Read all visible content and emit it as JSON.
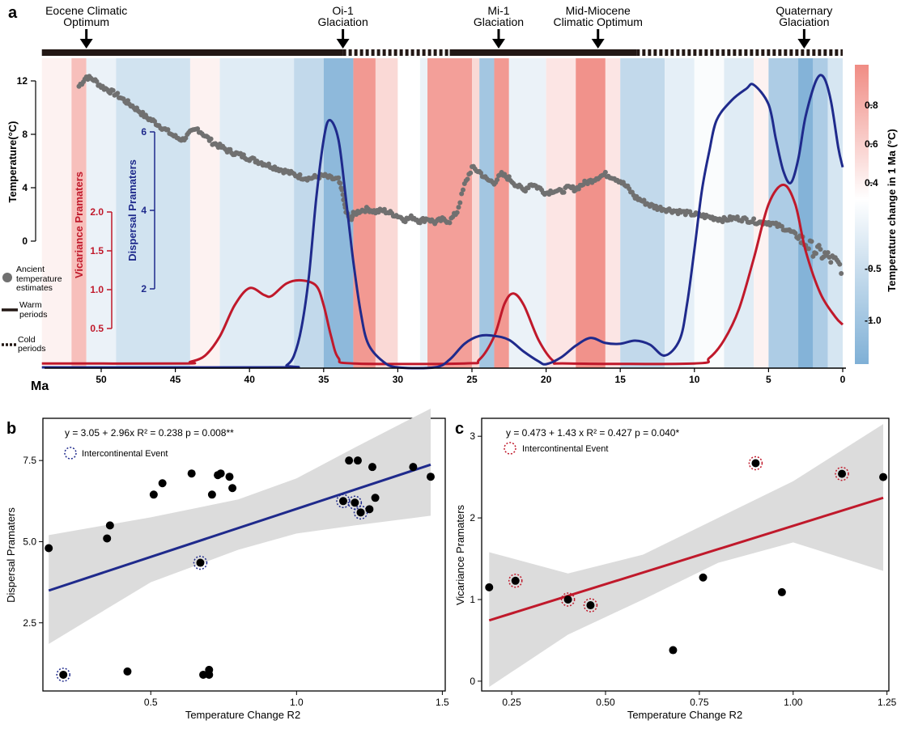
{
  "colors": {
    "vicariance": "#c0192b",
    "dispersal": "#1f2a8c",
    "temperature_points": "#707070",
    "warm_band": "#f08c84",
    "cold_band": "#7fb0d6",
    "ci_band": "#dcdcdc",
    "regression_b": "#1f2a8c",
    "regression_c": "#c0192b",
    "period_bar": "#231815"
  },
  "panel_a": {
    "label": "a",
    "events": [
      {
        "name_line1": "Eocene Climatic",
        "name_line2": "Optimum",
        "ma": 51
      },
      {
        "name_line1": "Oi-1",
        "name_line2": "Glaciation",
        "ma": 33.7
      },
      {
        "name_line1": "Mi-1",
        "name_line2": "Glaciation",
        "ma": 23.2
      },
      {
        "name_line1": "Mid-Miocene",
        "name_line2": "Climatic Optimum",
        "ma": 16.5
      },
      {
        "name_line1": "Quaternary",
        "name_line2": "Glaciation",
        "ma": 2.6
      }
    ],
    "periods": [
      {
        "type": "warm",
        "from": 54,
        "to": 33.7
      },
      {
        "type": "cold",
        "from": 33.7,
        "to": 26.5
      },
      {
        "type": "warm",
        "from": 26.5,
        "to": 13.9
      },
      {
        "type": "cold",
        "from": 13.9,
        "to": 0
      }
    ],
    "x_axis": {
      "label": "Ma",
      "ticks": [
        50,
        45,
        40,
        35,
        30,
        25,
        20,
        15,
        10,
        5,
        0
      ],
      "range": [
        54,
        0
      ]
    },
    "temperature_axis": {
      "label": "Temperature(°C)",
      "ticks": [
        0,
        4,
        8,
        12
      ],
      "range": [
        0,
        12
      ]
    },
    "vicariance_axis": {
      "label": "Vicariance Pramaters",
      "ticks": [
        0.5,
        1.0,
        1.5,
        2.0
      ]
    },
    "dispersal_axis": {
      "label": "Dispersal Pramaters",
      "ticks": [
        2,
        4,
        6
      ]
    },
    "colorbar": {
      "label": "Temperature change in 1 Ma (°C)",
      "ticks": [
        0.8,
        0.6,
        0.4,
        -0.5,
        -1.0
      ]
    },
    "legend": {
      "points_line1": "Ancient",
      "points_line2": "temperature",
      "points_line3": "estimates",
      "warm_line1": "Warm",
      "warm_line2": "periods",
      "cold_line1": "Cold",
      "cold_line2": "periods"
    },
    "temperature_series": [
      [
        51.5,
        11.6
      ],
      [
        51,
        12.3
      ],
      [
        50.5,
        12.1
      ],
      [
        50,
        11.6
      ],
      [
        49.5,
        11.3
      ],
      [
        49,
        11.0
      ],
      [
        48.5,
        10.6
      ],
      [
        48,
        10.2
      ],
      [
        47.5,
        9.8
      ],
      [
        47,
        9.3
      ],
      [
        46.5,
        9.0
      ],
      [
        46,
        8.6
      ],
      [
        45.5,
        8.2
      ],
      [
        45,
        7.8
      ],
      [
        44.5,
        7.6
      ],
      [
        44,
        8.1
      ],
      [
        43.5,
        8.4
      ],
      [
        43,
        7.9
      ],
      [
        42.5,
        7.4
      ],
      [
        42,
        7.1
      ],
      [
        41.5,
        6.8
      ],
      [
        41,
        6.6
      ],
      [
        40.5,
        6.4
      ],
      [
        40,
        6.2
      ],
      [
        39.5,
        6.0
      ],
      [
        39,
        5.8
      ],
      [
        38.5,
        5.6
      ],
      [
        38,
        5.4
      ],
      [
        37.5,
        5.2
      ],
      [
        37,
        5.0
      ],
      [
        36.5,
        4.8
      ],
      [
        36,
        4.7
      ],
      [
        35.5,
        4.8
      ],
      [
        35,
        4.9
      ],
      [
        34.5,
        4.7
      ],
      [
        34,
        4.6
      ],
      [
        33.7,
        3.5
      ],
      [
        33.5,
        2.2
      ],
      [
        33.2,
        1.6
      ],
      [
        33,
        2.0
      ],
      [
        32.5,
        2.3
      ],
      [
        32,
        2.4
      ],
      [
        31.5,
        2.2
      ],
      [
        31,
        2.3
      ],
      [
        30.5,
        2.1
      ],
      [
        30,
        1.9
      ],
      [
        29.5,
        1.6
      ],
      [
        29,
        1.8
      ],
      [
        28.5,
        1.5
      ],
      [
        28,
        1.7
      ],
      [
        27.5,
        1.4
      ],
      [
        27,
        1.6
      ],
      [
        26.5,
        1.5
      ],
      [
        26,
        2.2
      ],
      [
        25.5,
        4.2
      ],
      [
        25,
        5.5
      ],
      [
        24.5,
        5.2
      ],
      [
        24,
        4.6
      ],
      [
        23.5,
        4.4
      ],
      [
        23,
        5.0
      ],
      [
        22.5,
        4.7
      ],
      [
        22,
        4.2
      ],
      [
        21.5,
        3.8
      ],
      [
        21,
        4.3
      ],
      [
        20.5,
        4.0
      ],
      [
        20,
        3.6
      ],
      [
        19.5,
        3.8
      ],
      [
        19,
        3.7
      ],
      [
        18.5,
        4.0
      ],
      [
        18,
        3.9
      ],
      [
        17.5,
        4.3
      ],
      [
        17,
        4.5
      ],
      [
        16.5,
        4.8
      ],
      [
        16,
        5.0
      ],
      [
        15.5,
        4.8
      ],
      [
        15,
        4.5
      ],
      [
        14.5,
        4.0
      ],
      [
        14,
        3.3
      ],
      [
        13.5,
        3.0
      ],
      [
        13,
        2.7
      ],
      [
        12.5,
        2.5
      ],
      [
        12,
        2.4
      ],
      [
        11.5,
        2.3
      ],
      [
        11,
        2.2
      ],
      [
        10.5,
        2.1
      ],
      [
        10,
        2.0
      ],
      [
        9.5,
        1.9
      ],
      [
        9,
        1.8
      ],
      [
        8.5,
        1.7
      ],
      [
        8,
        1.6
      ],
      [
        7.5,
        1.7
      ],
      [
        7,
        1.7
      ],
      [
        6.5,
        1.6
      ],
      [
        6,
        1.5
      ],
      [
        5.5,
        1.4
      ],
      [
        5,
        1.4
      ],
      [
        4.5,
        1.2
      ],
      [
        4,
        1.0
      ],
      [
        3.5,
        0.7
      ],
      [
        3,
        0.3
      ],
      [
        2.5,
        -0.2
      ],
      [
        2,
        -0.6
      ],
      [
        1.5,
        -0.9
      ],
      [
        1,
        -1.2
      ],
      [
        0.5,
        -1.6
      ],
      [
        0,
        -2.0
      ]
    ],
    "vicariance_series": [
      [
        54,
        0.05
      ],
      [
        44.5,
        0.05
      ],
      [
        44,
        0.07
      ],
      [
        43,
        0.15
      ],
      [
        42,
        0.4
      ],
      [
        41,
        0.8
      ],
      [
        40,
        1.02
      ],
      [
        39,
        0.93
      ],
      [
        38.5,
        0.92
      ],
      [
        37.5,
        1.08
      ],
      [
        36.5,
        1.12
      ],
      [
        35.5,
        1.05
      ],
      [
        35,
        0.8
      ],
      [
        34.5,
        0.4
      ],
      [
        34,
        0.12
      ],
      [
        33,
        0.05
      ],
      [
        25.5,
        0.05
      ],
      [
        24.5,
        0.1
      ],
      [
        23.5,
        0.4
      ],
      [
        22.8,
        0.82
      ],
      [
        22.2,
        0.95
      ],
      [
        21.5,
        0.8
      ],
      [
        20.5,
        0.35
      ],
      [
        19.5,
        0.08
      ],
      [
        18.5,
        0.05
      ],
      [
        10,
        0.05
      ],
      [
        9,
        0.12
      ],
      [
        8,
        0.35
      ],
      [
        7,
        0.75
      ],
      [
        6,
        1.4
      ],
      [
        5,
        2.1
      ],
      [
        4,
        2.35
      ],
      [
        3.2,
        2.1
      ],
      [
        2.5,
        1.5
      ],
      [
        1.5,
        0.95
      ],
      [
        0.5,
        0.65
      ],
      [
        0,
        0.55
      ]
    ],
    "dispersal_series": [
      [
        54,
        0.0
      ],
      [
        38,
        0.0
      ],
      [
        37.5,
        0.05
      ],
      [
        37,
        0.3
      ],
      [
        36.5,
        1.0
      ],
      [
        36,
        2.3
      ],
      [
        35.5,
        4.3
      ],
      [
        35,
        5.8
      ],
      [
        34.6,
        6.3
      ],
      [
        34,
        5.8
      ],
      [
        33.5,
        4.3
      ],
      [
        33,
        2.7
      ],
      [
        32.5,
        1.4
      ],
      [
        32,
        0.6
      ],
      [
        31,
        0.15
      ],
      [
        30,
        0.0
      ],
      [
        27.5,
        0.0
      ],
      [
        26.5,
        0.2
      ],
      [
        25.5,
        0.6
      ],
      [
        24.5,
        0.8
      ],
      [
        23.5,
        0.8
      ],
      [
        22.5,
        0.7
      ],
      [
        21.5,
        0.4
      ],
      [
        20.5,
        0.15
      ],
      [
        20,
        0.08
      ],
      [
        19,
        0.25
      ],
      [
        18,
        0.55
      ],
      [
        17,
        0.75
      ],
      [
        16,
        0.62
      ],
      [
        15,
        0.6
      ],
      [
        14,
        0.68
      ],
      [
        13,
        0.58
      ],
      [
        12,
        0.3
      ],
      [
        11,
        0.7
      ],
      [
        10.5,
        1.6
      ],
      [
        10,
        3.0
      ],
      [
        9.5,
        4.5
      ],
      [
        9,
        5.5
      ],
      [
        8.5,
        6.3
      ],
      [
        7.5,
        6.8
      ],
      [
        6.5,
        7.1
      ],
      [
        6,
        7.2
      ],
      [
        5,
        6.7
      ],
      [
        4.5,
        5.8
      ],
      [
        4,
        5.0
      ],
      [
        3.5,
        4.7
      ],
      [
        3,
        5.3
      ],
      [
        2.5,
        6.4
      ],
      [
        1.8,
        7.3
      ],
      [
        1.3,
        7.4
      ],
      [
        0.8,
        6.8
      ],
      [
        0.3,
        5.6
      ],
      [
        0,
        5.1
      ]
    ],
    "temperature_change_bands": [
      [
        54,
        52,
        0.1
      ],
      [
        52,
        51,
        0.5
      ],
      [
        51,
        49,
        -0.2
      ],
      [
        49,
        44,
        -0.45
      ],
      [
        44,
        42,
        0.1
      ],
      [
        42,
        37,
        -0.3
      ],
      [
        37,
        35,
        -0.6
      ],
      [
        35,
        33,
        -1.1
      ],
      [
        33,
        31.5,
        0.8
      ],
      [
        31.5,
        30,
        0.3
      ],
      [
        30,
        28.5,
        0.0
      ],
      [
        28.5,
        28,
        -0.2
      ],
      [
        28,
        25,
        0.75
      ],
      [
        25,
        24.5,
        0.3
      ],
      [
        24.5,
        23.5,
        -0.9
      ],
      [
        23.5,
        22.5,
        0.8
      ],
      [
        22.5,
        20,
        -0.2
      ],
      [
        20,
        18,
        0.2
      ],
      [
        18,
        16,
        0.85
      ],
      [
        16,
        15,
        0.2
      ],
      [
        15,
        12,
        -0.6
      ],
      [
        12,
        10,
        -0.25
      ],
      [
        10,
        8,
        -0.05
      ],
      [
        8,
        6,
        -0.3
      ],
      [
        6,
        5,
        0.1
      ],
      [
        5,
        3,
        -0.8
      ],
      [
        3,
        2,
        -1.2
      ],
      [
        2,
        1,
        -0.8
      ],
      [
        1,
        0,
        -0.4
      ]
    ]
  },
  "panel_b": {
    "label": "b",
    "equation": "y = 3.05 + 2.96x   R² = 0.238   p = 0.008**",
    "legend": "Intercontinental Event",
    "x_label": "Temperature Change R2",
    "y_label": "Dispersal Pramaters",
    "x_ticks": [
      0.5,
      1.0,
      1.5
    ],
    "y_ticks": [
      2.5,
      5.0,
      7.5
    ],
    "x_range": [
      0.13,
      1.51
    ],
    "y_range": [
      0.4,
      8.8
    ],
    "regression": {
      "intercept": 3.05,
      "slope": 2.96,
      "x_from": 0.15,
      "x_to": 1.46
    },
    "points": [
      {
        "x": 0.15,
        "y": 4.8,
        "event": false
      },
      {
        "x": 0.2,
        "y": 0.9,
        "event": true
      },
      {
        "x": 0.35,
        "y": 5.1,
        "event": false
      },
      {
        "x": 0.36,
        "y": 5.5,
        "event": false
      },
      {
        "x": 0.42,
        "y": 1.0,
        "event": false
      },
      {
        "x": 0.51,
        "y": 6.45,
        "event": false
      },
      {
        "x": 0.54,
        "y": 6.8,
        "event": false
      },
      {
        "x": 0.64,
        "y": 7.1,
        "event": false
      },
      {
        "x": 0.67,
        "y": 4.35,
        "event": true
      },
      {
        "x": 0.68,
        "y": 0.9,
        "event": false
      },
      {
        "x": 0.7,
        "y": 0.9,
        "event": false
      },
      {
        "x": 0.7,
        "y": 1.05,
        "event": false
      },
      {
        "x": 0.71,
        "y": 6.45,
        "event": false
      },
      {
        "x": 0.73,
        "y": 7.05,
        "event": false
      },
      {
        "x": 0.74,
        "y": 7.1,
        "event": false
      },
      {
        "x": 0.77,
        "y": 7.0,
        "event": false
      },
      {
        "x": 0.78,
        "y": 6.65,
        "event": false
      },
      {
        "x": 1.16,
        "y": 6.25,
        "event": true
      },
      {
        "x": 1.18,
        "y": 7.5,
        "event": false
      },
      {
        "x": 1.2,
        "y": 6.2,
        "event": true
      },
      {
        "x": 1.21,
        "y": 7.5,
        "event": false
      },
      {
        "x": 1.22,
        "y": 5.9,
        "event": true
      },
      {
        "x": 1.25,
        "y": 6.0,
        "event": false
      },
      {
        "x": 1.26,
        "y": 7.3,
        "event": false
      },
      {
        "x": 1.27,
        "y": 6.35,
        "event": false
      },
      {
        "x": 1.4,
        "y": 7.3,
        "event": false
      },
      {
        "x": 1.46,
        "y": 7.0,
        "event": false
      }
    ],
    "ci_upper": [
      [
        0.15,
        5.2
      ],
      [
        0.5,
        5.75
      ],
      [
        0.8,
        6.3
      ],
      [
        1.0,
        6.95
      ],
      [
        1.2,
        7.9
      ],
      [
        1.46,
        9.1
      ]
    ],
    "ci_lower": [
      [
        0.15,
        1.85
      ],
      [
        0.5,
        3.75
      ],
      [
        0.8,
        4.75
      ],
      [
        1.0,
        5.25
      ],
      [
        1.2,
        5.5
      ],
      [
        1.46,
        5.8
      ]
    ]
  },
  "panel_c": {
    "label": "c",
    "equation": "y = 0.473 + 1.43 x   R² = 0.427   p = 0.040*",
    "legend": "Intercontinental Event",
    "x_label": "Temperature Change R2",
    "y_label": "Vicariance Pramaters",
    "x_ticks": [
      0.25,
      0.5,
      0.75,
      1.0,
      1.25
    ],
    "y_ticks": [
      0,
      1,
      2,
      3
    ],
    "x_range": [
      0.17,
      1.255
    ],
    "y_range": [
      -0.12,
      3.22
    ],
    "regression": {
      "intercept": 0.473,
      "slope": 1.43,
      "x_from": 0.19,
      "x_to": 1.24
    },
    "points": [
      {
        "x": 0.19,
        "y": 1.15,
        "event": false
      },
      {
        "x": 0.26,
        "y": 1.23,
        "event": true
      },
      {
        "x": 0.4,
        "y": 1.0,
        "event": true
      },
      {
        "x": 0.46,
        "y": 0.93,
        "event": true
      },
      {
        "x": 0.68,
        "y": 0.38,
        "event": false
      },
      {
        "x": 0.76,
        "y": 1.27,
        "event": false
      },
      {
        "x": 0.9,
        "y": 2.67,
        "event": true
      },
      {
        "x": 0.97,
        "y": 1.09,
        "event": false
      },
      {
        "x": 1.13,
        "y": 2.54,
        "event": true
      },
      {
        "x": 1.24,
        "y": 2.5,
        "event": false
      }
    ],
    "ci_upper": [
      [
        0.19,
        1.58
      ],
      [
        0.4,
        1.32
      ],
      [
        0.6,
        1.55
      ],
      [
        0.8,
        2.0
      ],
      [
        1.0,
        2.45
      ],
      [
        1.24,
        3.15
      ]
    ],
    "ci_lower": [
      [
        0.19,
        -0.07
      ],
      [
        0.4,
        0.57
      ],
      [
        0.6,
        1.0
      ],
      [
        0.8,
        1.45
      ],
      [
        1.0,
        1.7
      ],
      [
        1.24,
        1.35
      ]
    ]
  }
}
